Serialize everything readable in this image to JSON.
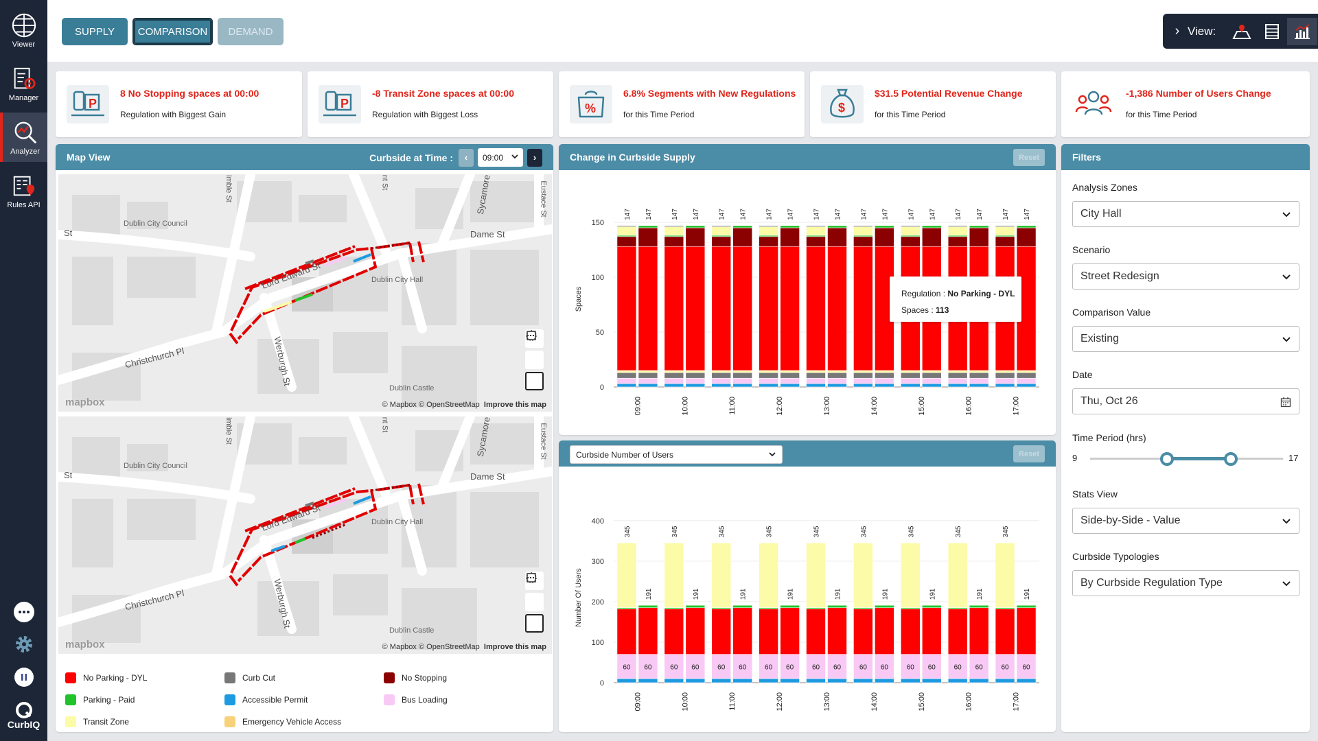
{
  "sidebar": {
    "items": [
      {
        "label": "Viewer",
        "icon": "viewer-icon"
      },
      {
        "label": "Manager",
        "icon": "manager-icon"
      },
      {
        "label": "Analyzer",
        "icon": "analyzer-icon",
        "active": true
      },
      {
        "label": "Rules API",
        "icon": "rules-api-icon"
      }
    ],
    "brand": "CurbIQ"
  },
  "modes": {
    "supply": "SUPPLY",
    "comparison": "COMPARISON",
    "demand": "DEMAND",
    "active": "comparison"
  },
  "view_bar": {
    "label": "View:",
    "icons": [
      "map-view-icon",
      "table-view-icon",
      "chart-view-icon",
      "settings-icon"
    ],
    "active": "chart-view-icon"
  },
  "kpis": [
    {
      "title": "8 No Stopping spaces at 00:00",
      "subtitle": "Regulation with Biggest Gain",
      "icon": "parking-sign-icon"
    },
    {
      "title": "-8 Transit Zone spaces at 00:00",
      "subtitle": "Regulation with Biggest Loss",
      "icon": "parking-sign-icon"
    },
    {
      "title": "6.8% Segments with New Regulations",
      "subtitle": "for this Time Period",
      "icon": "percent-bag-icon"
    },
    {
      "title": "$31.5 Potential Revenue Change",
      "subtitle": "for this Time Period",
      "icon": "money-bag-icon"
    },
    {
      "title": "-1,386 Number of Users Change",
      "subtitle": "for this Time Period",
      "icon": "users-group-icon"
    }
  ],
  "map_panel": {
    "title": "Map View",
    "time_label": "Curbside at Time :",
    "time_value": "09:00",
    "streets": [
      "Dame St",
      "Lord Edward St",
      "Christchurch Pl",
      "Werburgh St",
      "St",
      "Sycamore",
      "Eustace St",
      "imble St",
      "nt St"
    ],
    "pois": [
      "Dublin City Council",
      "Dublin City Hall",
      "Dublin Castle"
    ],
    "attribution": "© Mapbox © OpenStreetMap",
    "improve": "Improve this map",
    "logo": "mapbox"
  },
  "legend": [
    {
      "label": "No Parking - DYL",
      "color": "#ff0000"
    },
    {
      "label": "Curb Cut",
      "color": "#777777"
    },
    {
      "label": "No Stopping",
      "color": "#8b0000"
    },
    {
      "label": "Parking - Paid",
      "color": "#22c22a"
    },
    {
      "label": "Accessible Permit",
      "color": "#1e9be0"
    },
    {
      "label": "Bus Loading",
      "color": "#f9c9f5"
    },
    {
      "label": "Transit Zone",
      "color": "#fbfba8"
    },
    {
      "label": "Emergency Vehicle Access",
      "color": "#f8d27a"
    }
  ],
  "supply_panel": {
    "title": "Change in Curbside Supply",
    "reset": "Reset",
    "tooltip": {
      "key1": "Regulation : ",
      "val1": "No Parking - DYL",
      "key2": "Spaces : ",
      "val2": "113"
    }
  },
  "users_panel": {
    "dropdown": "Curbside Number of Users",
    "reset": "Reset"
  },
  "filters": {
    "title": "Filters",
    "analysis_zones_label": "Analysis Zones",
    "analysis_zones": "City Hall",
    "scenario_label": "Scenario",
    "scenario": "Street Redesign",
    "comparison_label": "Comparison Value",
    "comparison": "Existing",
    "date_label": "Date",
    "date": "Thu, Oct 26",
    "time_period_label": "Time Period (hrs)",
    "time_min": "9",
    "time_max": "17",
    "range_start_fraction": 0.4,
    "range_end_fraction": 0.73,
    "stats_view_label": "Stats View",
    "stats_view": "Side-by-Side - Value",
    "typologies_label": "Curbside Typologies",
    "typologies": "By Curbside Regulation Type"
  },
  "chart_data": [
    {
      "type": "bar",
      "title": "Change in Curbside Supply",
      "ylabel": "Spaces",
      "ylim": [
        0,
        160
      ],
      "yticks": [
        0,
        50,
        100,
        150
      ],
      "categories": [
        "09:00",
        "10:00",
        "11:00",
        "12:00",
        "13:00",
        "14:00",
        "15:00",
        "16:00",
        "17:00"
      ],
      "stacked": true,
      "side_by_side": [
        "Existing",
        "Street Redesign"
      ],
      "totals_label": [
        147,
        147
      ],
      "stack_order": [
        "Accessible Permit",
        "Bus Loading",
        "Curb Cut",
        "Transit Zone",
        "No Parking - DYL",
        "No Stopping",
        "Parking - Paid",
        "Transit Zone (top)"
      ],
      "series_existing": [
        {
          "name": "Accessible Permit",
          "color": "#1e9be0",
          "value": 3
        },
        {
          "name": "Bus Loading",
          "color": "#f9c9f5",
          "value": 5
        },
        {
          "name": "Curb Cut",
          "color": "#777777",
          "value": 5
        },
        {
          "name": "Transit Zone",
          "color": "#fbfba8",
          "value": 2
        },
        {
          "name": "No Parking - DYL",
          "color": "#ff0000",
          "value": 113
        },
        {
          "name": "No Stopping",
          "color": "#8b0000",
          "value": 9
        },
        {
          "name": "Parking - Paid",
          "color": "#22c22a",
          "value": 1
        },
        {
          "name": "Transit Zone",
          "color": "#fbfba8",
          "value": 8
        },
        {
          "name": "Curb Cut",
          "color": "#777777",
          "value": 1
        }
      ],
      "series_redesign": [
        {
          "name": "Accessible Permit",
          "color": "#1e9be0",
          "value": 3
        },
        {
          "name": "Bus Loading",
          "color": "#f9c9f5",
          "value": 5
        },
        {
          "name": "Curb Cut",
          "color": "#777777",
          "value": 5
        },
        {
          "name": "Transit Zone",
          "color": "#fbfba8",
          "value": 2
        },
        {
          "name": "No Parking - DYL",
          "color": "#ff0000",
          "value": 113
        },
        {
          "name": "No Stopping",
          "color": "#8b0000",
          "value": 17
        },
        {
          "name": "Parking - Paid",
          "color": "#22c22a",
          "value": 2
        }
      ]
    },
    {
      "type": "bar",
      "title": "Curbside Number of Users",
      "ylabel": "Number Of Users",
      "ylim": [
        0,
        420
      ],
      "yticks": [
        0,
        100,
        200,
        300,
        400
      ],
      "categories": [
        "09:00",
        "10:00",
        "11:00",
        "12:00",
        "13:00",
        "14:00",
        "15:00",
        "16:00",
        "17:00"
      ],
      "stacked": true,
      "side_by_side": [
        "Existing",
        "Street Redesign"
      ],
      "totals_label": [
        345,
        191
      ],
      "series_existing": [
        {
          "name": "Accessible Permit",
          "color": "#1e9be0",
          "value": 10
        },
        {
          "name": "Bus Loading",
          "color": "#f9c9f5",
          "value": 60
        },
        {
          "name": "No Parking - DYL",
          "color": "#ff0000",
          "value": 112
        },
        {
          "name": "Parking - Paid",
          "color": "#22c22a",
          "value": 3
        },
        {
          "name": "Transit Zone",
          "color": "#fbfba8",
          "value": 160
        }
      ],
      "series_redesign": [
        {
          "name": "Accessible Permit",
          "color": "#1e9be0",
          "value": 10
        },
        {
          "name": "Bus Loading",
          "color": "#f9c9f5",
          "value": 60
        },
        {
          "name": "No Parking - DYL",
          "color": "#ff0000",
          "value": 115
        },
        {
          "name": "Parking - Paid",
          "color": "#22c22a",
          "value": 6
        }
      ],
      "segment_labels": [
        60,
        60
      ]
    }
  ]
}
